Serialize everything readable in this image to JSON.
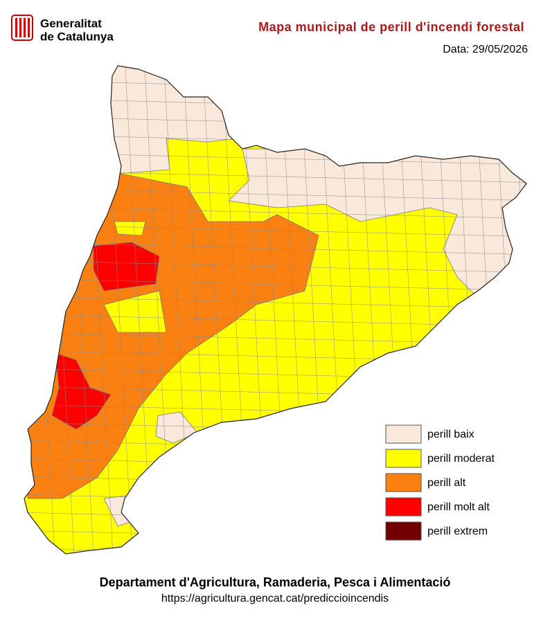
{
  "header": {
    "logo_line1": "Generalitat",
    "logo_line2": "de Catalunya",
    "title": "Mapa municipal de perill d'incendi forestal",
    "date": "Data: 29/05/2026"
  },
  "legend": {
    "items": [
      {
        "label": "perill baix",
        "color": "#fae9da"
      },
      {
        "label": "perill moderat",
        "color": "#ffff00"
      },
      {
        "label": "perill alt",
        "color": "#fb8012"
      },
      {
        "label": "perill molt alt",
        "color": "#ff0000"
      },
      {
        "label": "perill extrem",
        "color": "#720000"
      }
    ]
  },
  "footer": {
    "department": "Departament d'Agricultura, Ramaderia, Pesca i Alimentació",
    "url": "https://agricultura.gencat.cat/prediccioincendis"
  }
}
